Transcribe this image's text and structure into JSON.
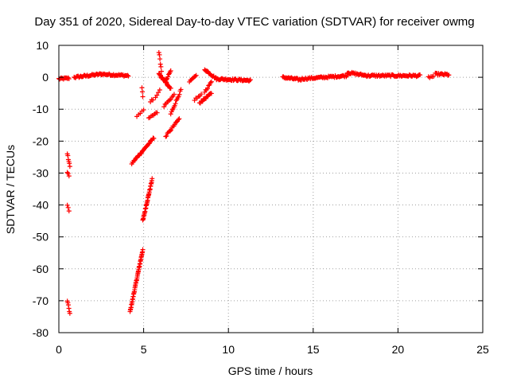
{
  "chart_data": {
    "type": "scatter",
    "title": "Day 351 of 2020, Sidereal Day-to-day VTEC variation (SDTVAR) for receiver owmg",
    "xlabel": "GPS time / hours",
    "ylabel": "SDTVAR / TECUs",
    "xlim": [
      0,
      25
    ],
    "ylim": [
      -80,
      10
    ],
    "xticks": [
      0,
      5,
      10,
      15,
      20,
      25
    ],
    "yticks": [
      10,
      0,
      -10,
      -20,
      -30,
      -40,
      -50,
      -60,
      -70,
      -80
    ],
    "grid": true,
    "marker": "+",
    "color": "#ff0000",
    "segments": [
      {
        "x0": 0.0,
        "y0": -0.5,
        "x1": 0.6,
        "y1": -0.3,
        "n": 14
      },
      {
        "x0": 0.9,
        "y0": 0.0,
        "x1": 2.5,
        "y1": 1.0,
        "n": 34
      },
      {
        "x0": 2.5,
        "y0": 1.0,
        "x1": 4.1,
        "y1": 0.5,
        "n": 32
      },
      {
        "x0": 0.5,
        "y0": -24.0,
        "x1": 0.65,
        "y1": -28.0,
        "n": 6
      },
      {
        "x0": 0.5,
        "y0": -29.5,
        "x1": 0.6,
        "y1": -31.0,
        "n": 3
      },
      {
        "x0": 0.5,
        "y0": -40.0,
        "x1": 0.6,
        "y1": -42.0,
        "n": 3
      },
      {
        "x0": 0.5,
        "y0": -70.0,
        "x1": 0.65,
        "y1": -74.0,
        "n": 6
      },
      {
        "x0": 4.2,
        "y0": -73.5,
        "x1": 4.95,
        "y1": -54.0,
        "n": 48
      },
      {
        "x0": 4.95,
        "y0": -45.0,
        "x1": 5.5,
        "y1": -32.0,
        "n": 34
      },
      {
        "x0": 4.3,
        "y0": -27.0,
        "x1": 5.6,
        "y1": -19.0,
        "n": 32
      },
      {
        "x0": 4.6,
        "y0": -12.0,
        "x1": 5.0,
        "y1": -10.5,
        "n": 5
      },
      {
        "x0": 4.9,
        "y0": -3.0,
        "x1": 4.95,
        "y1": -6.0,
        "n": 3
      },
      {
        "x0": 5.4,
        "y0": -7.5,
        "x1": 5.55,
        "y1": -7.0,
        "n": 3
      },
      {
        "x0": 5.3,
        "y0": -13.0,
        "x1": 5.8,
        "y1": -11.0,
        "n": 8
      },
      {
        "x0": 5.7,
        "y0": -6.5,
        "x1": 5.95,
        "y1": -4.0,
        "n": 4
      },
      {
        "x0": 5.9,
        "y0": 8.0,
        "x1": 6.05,
        "y1": 2.0,
        "n": 6
      },
      {
        "x0": 5.9,
        "y0": 1.0,
        "x1": 6.6,
        "y1": -3.5,
        "n": 30
      },
      {
        "x0": 6.3,
        "y0": -1.0,
        "x1": 6.6,
        "y1": 2.0,
        "n": 8
      },
      {
        "x0": 6.2,
        "y0": -9.0,
        "x1": 6.8,
        "y1": -5.5,
        "n": 10
      },
      {
        "x0": 6.3,
        "y0": -18.5,
        "x1": 7.1,
        "y1": -13.0,
        "n": 16
      },
      {
        "x0": 6.6,
        "y0": -11.5,
        "x1": 7.2,
        "y1": -4.0,
        "n": 14
      },
      {
        "x0": 7.7,
        "y0": -1.5,
        "x1": 8.1,
        "y1": 0.5,
        "n": 8
      },
      {
        "x0": 8.0,
        "y0": -7.0,
        "x1": 8.4,
        "y1": -5.5,
        "n": 6
      },
      {
        "x0": 8.3,
        "y0": -8.0,
        "x1": 9.0,
        "y1": -5.0,
        "n": 16
      },
      {
        "x0": 8.6,
        "y0": -4.5,
        "x1": 9.0,
        "y1": -1.5,
        "n": 8
      },
      {
        "x0": 8.6,
        "y0": 2.5,
        "x1": 9.3,
        "y1": -0.5,
        "n": 18
      },
      {
        "x0": 9.3,
        "y0": -0.5,
        "x1": 11.3,
        "y1": -1.0,
        "n": 45
      },
      {
        "x0": 13.2,
        "y0": 0.0,
        "x1": 14.3,
        "y1": -0.8,
        "n": 26
      },
      {
        "x0": 14.3,
        "y0": -0.5,
        "x1": 17.0,
        "y1": 0.5,
        "n": 55
      },
      {
        "x0": 17.0,
        "y0": 1.5,
        "x1": 18.2,
        "y1": 0.5,
        "n": 26
      },
      {
        "x0": 18.2,
        "y0": 0.5,
        "x1": 21.3,
        "y1": 0.5,
        "n": 60
      },
      {
        "x0": 21.8,
        "y0": 0.0,
        "x1": 22.1,
        "y1": 0.3,
        "n": 5
      },
      {
        "x0": 22.2,
        "y0": 1.0,
        "x1": 23.0,
        "y1": 0.8,
        "n": 18
      }
    ]
  }
}
